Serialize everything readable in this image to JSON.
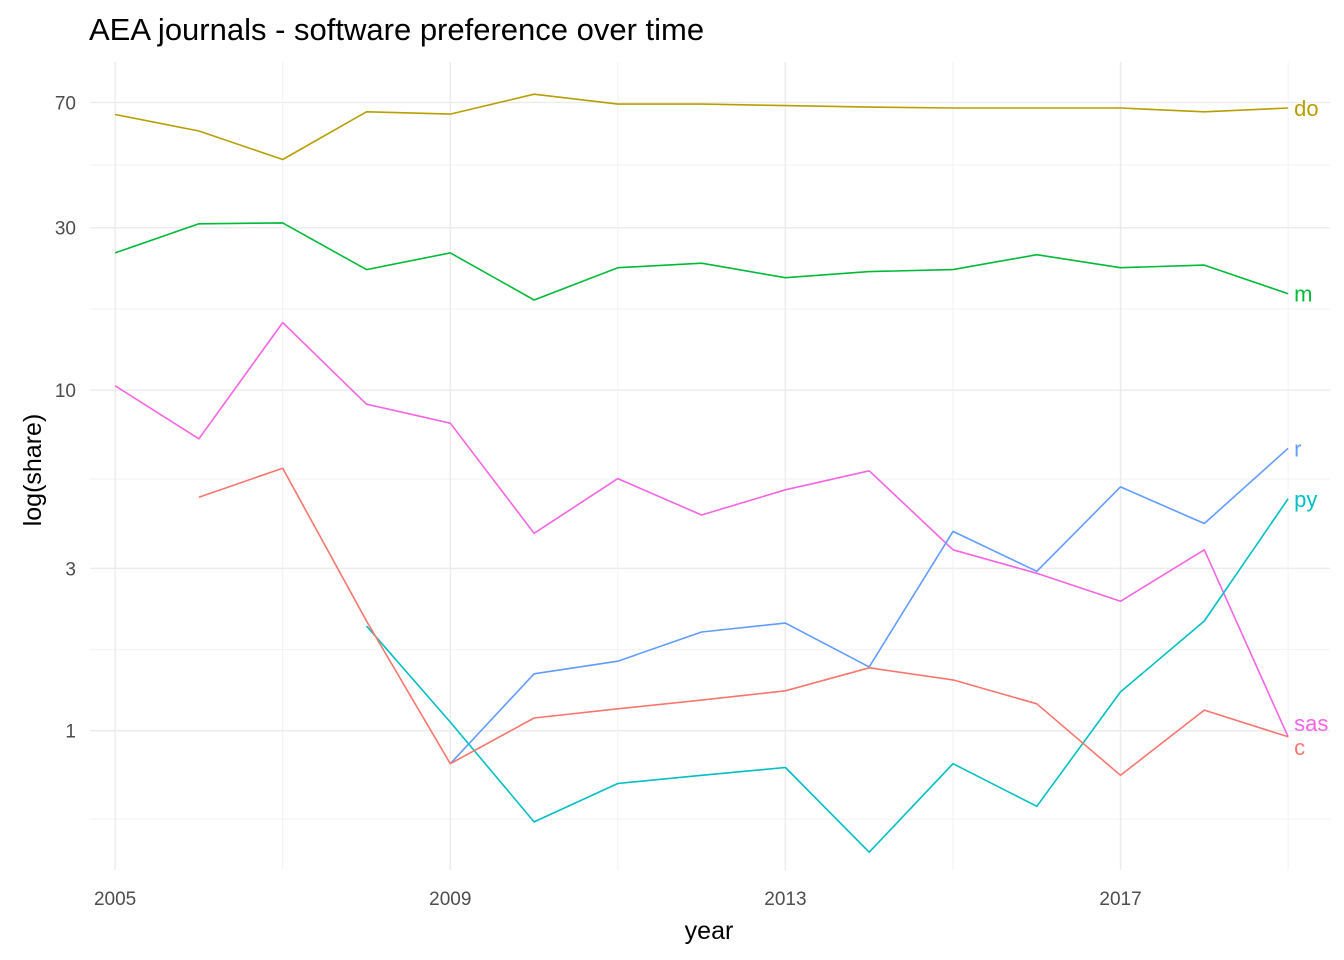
{
  "chart_data": {
    "type": "line",
    "title": "AEA journals - software preference over time",
    "xlabel": "year",
    "ylabel": "log(share)",
    "y_scale": "log10",
    "xlim": [
      2004.7,
      2019.5
    ],
    "ylim": [
      0.39,
      92
    ],
    "x_ticks": [
      2005,
      2009,
      2013,
      2017
    ],
    "x_tick_labels": [
      "2005",
      "2009",
      "2013",
      "2017"
    ],
    "y_ticks": [
      1,
      3,
      10,
      30,
      70
    ],
    "y_tick_labels": [
      "1",
      "3",
      "10",
      "30",
      "70"
    ],
    "y_minor_ticks": [
      0.55,
      1.73,
      5.48,
      17.3,
      45.8
    ],
    "grid": true,
    "legend": "none (labels at line ends)",
    "series": [
      {
        "name": "do",
        "color": "#B79F00",
        "x": [
          2005,
          2006,
          2007,
          2008,
          2009,
          2010,
          2011,
          2012,
          2013,
          2014,
          2015,
          2016,
          2017,
          2018,
          2019
        ],
        "values": [
          64.5,
          57.7,
          47.6,
          65.7,
          64.7,
          74.0,
          69.2,
          69.2,
          68.5,
          67.8,
          67.4,
          67.4,
          67.4,
          65.7,
          67.4
        ]
      },
      {
        "name": "m",
        "color": "#00BA38",
        "x": [
          2005,
          2006,
          2007,
          2008,
          2009,
          2010,
          2011,
          2012,
          2013,
          2014,
          2015,
          2016,
          2017,
          2018,
          2019
        ],
        "values": [
          25.3,
          30.8,
          31.0,
          22.6,
          25.3,
          18.4,
          22.9,
          23.6,
          21.4,
          22.3,
          22.6,
          25.0,
          22.9,
          23.3,
          19.2
        ]
      },
      {
        "name": "sas",
        "color": "#F564E3",
        "x": [
          2005,
          2006,
          2007,
          2008,
          2009,
          2010,
          2011,
          2012,
          2013,
          2014,
          2015,
          2016,
          2017,
          2018,
          2019
        ],
        "values": [
          10.3,
          7.2,
          15.8,
          9.1,
          8.0,
          3.8,
          5.5,
          4.3,
          5.1,
          5.8,
          3.4,
          2.9,
          2.4,
          3.4,
          0.96
        ]
      },
      {
        "name": "r",
        "color": "#619CFF",
        "x": [
          2009,
          2010,
          2011,
          2012,
          2013,
          2014,
          2015,
          2016,
          2017,
          2018,
          2019
        ],
        "values": [
          0.8,
          1.47,
          1.6,
          1.95,
          2.07,
          1.54,
          3.85,
          2.94,
          5.2,
          4.06,
          6.75
        ]
      },
      {
        "name": "py",
        "color": "#00BFC4",
        "x": [
          2008,
          2009,
          2010,
          2011,
          2012,
          2013,
          2014,
          2015,
          2016,
          2017,
          2018,
          2019
        ],
        "values": [
          2.03,
          1.06,
          0.54,
          0.7,
          0.74,
          0.78,
          0.44,
          0.8,
          0.6,
          1.3,
          2.1,
          4.8
        ]
      },
      {
        "name": "c",
        "color": "#F8766D",
        "x": [
          2006,
          2007,
          2008,
          2009,
          2010,
          2011,
          2012,
          2013,
          2014,
          2015,
          2016,
          2017,
          2018,
          2019
        ],
        "values": [
          4.85,
          5.9,
          2.1,
          0.8,
          1.09,
          1.16,
          1.23,
          1.31,
          1.53,
          1.41,
          1.2,
          0.74,
          1.15,
          0.96
        ]
      }
    ]
  }
}
